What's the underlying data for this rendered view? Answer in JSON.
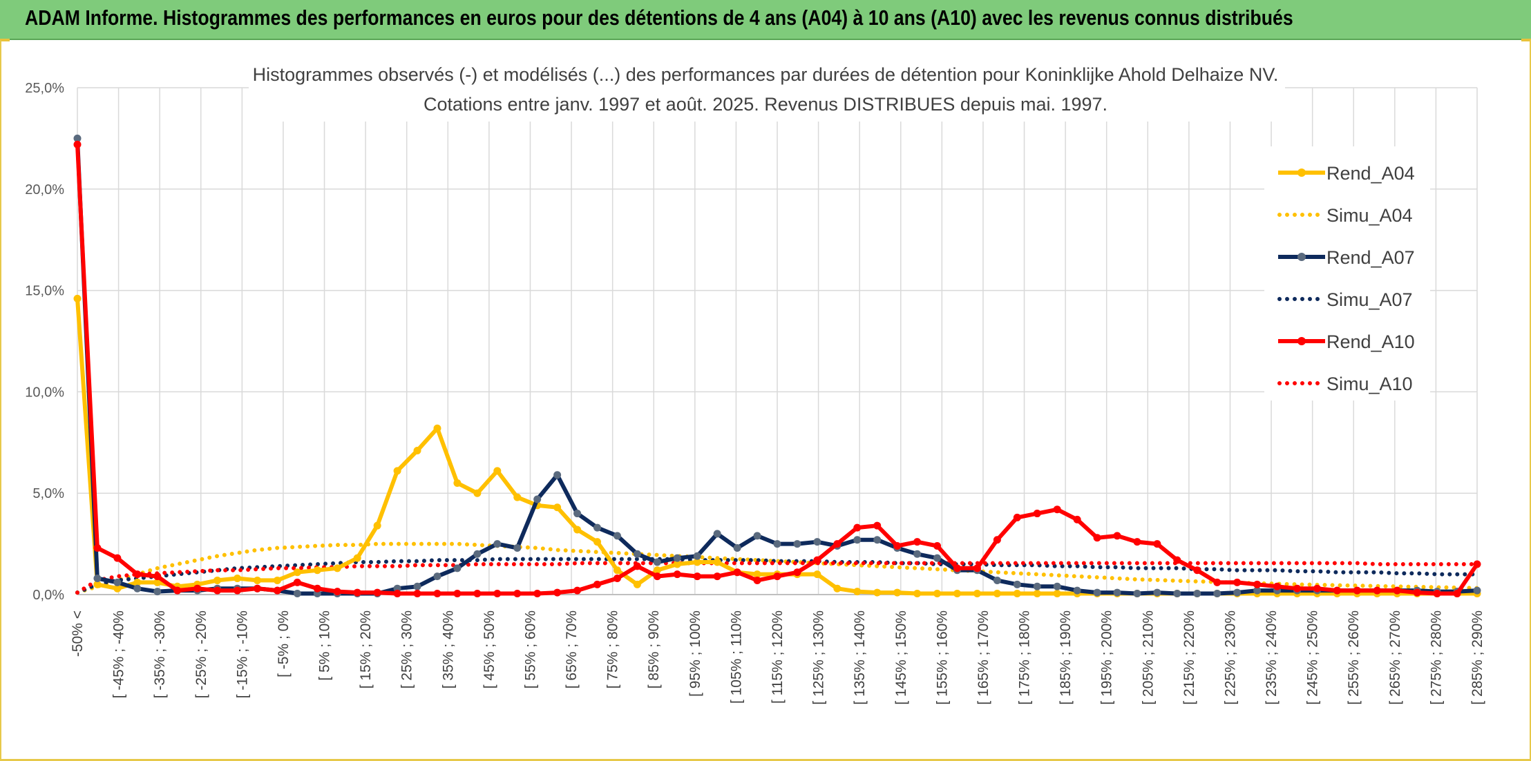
{
  "banner": {
    "title": "ADAM Informe. Histogrammes des performances en euros pour des détentions de 4 ans (A04) à 10 ans (A10) avec les revenus connus distribués"
  },
  "colors": {
    "banner_bg": "#7fcb7b",
    "a04": "#ffc000",
    "a07": "#0e2a5c",
    "a07_marker": "#5a6a7e",
    "a10": "#ff0000",
    "grid": "#d9d9d9"
  },
  "chart_data": {
    "type": "line",
    "title": "Histogrammes observés (-) et modélisés (...) des performances par durées de détention pour Koninklijke Ahold Delhaize NV.",
    "subtitle": "Cotations entre janv. 1997 et août. 2025. Revenus DISTRIBUES depuis mai. 1997.",
    "ylim": [
      0,
      25
    ],
    "yticks": [
      "0,0%",
      "5,0%",
      "10,0%",
      "15,0%",
      "20,0%",
      "25,0%"
    ],
    "ytick_values": [
      0,
      5,
      10,
      15,
      20,
      25
    ],
    "grid": true,
    "legend_position": "right",
    "x_labels": [
      "-50% <",
      "[ -45% ; -40%",
      "[ -35% ; -30%",
      "[ -25% ; -20%",
      "[ -15% ; -10%",
      "[ -5% ; 0%",
      "[ 5% ; 10%",
      "[ 15% ; 20%",
      "[ 25% ; 30%",
      "[ 35% ; 40%",
      "[ 45% ; 50%",
      "[ 55% ; 60%",
      "[ 65% ; 70%",
      "[ 75% ; 80%",
      "[ 85% ; 90%",
      "[ 95% ; 100%",
      "[ 105% ; 110%",
      "[ 115% ; 120%",
      "[ 125% ; 130%",
      "[ 135% ; 140%",
      "[ 145% ; 150%",
      "[ 155% ; 160%",
      "[ 165% ; 170%",
      "[ 175% ; 180%",
      "[ 185% ; 190%",
      "[ 195% ; 200%",
      "[ 205% ; 210%",
      "[ 215% ; 220%",
      "[ 225% ; 230%",
      "[ 235% ; 240%",
      "[ 245% ; 250%",
      "[ 255% ; 260%",
      "[ 265% ; 270%",
      "[ 275% ; 280%",
      "[ 285% ; 290%"
    ],
    "series": [
      {
        "name": "Rend_A04",
        "style": "solid",
        "color": "#ffc000",
        "values": [
          14.6,
          0.5,
          0.3,
          0.6,
          0.6,
          0.4,
          0.5,
          0.7,
          0.8,
          0.7,
          0.7,
          1.1,
          1.2,
          1.3,
          1.8,
          3.4,
          6.1,
          7.1,
          8.2,
          5.5,
          5.0,
          6.1,
          4.8,
          4.4,
          4.3,
          3.2,
          2.6,
          1.2,
          0.5,
          1.2,
          1.5,
          1.6,
          1.6,
          1.1,
          1.0,
          1.0,
          1.0,
          1.0,
          0.3,
          0.15,
          0.1,
          0.1,
          0.05,
          0.05,
          0.05,
          0.05,
          0.05,
          0.05,
          0.05,
          0.05,
          0.05,
          0.05,
          0.05,
          0.05,
          0.05,
          0.05,
          0.05,
          0.05,
          0.05,
          0.05,
          0.05,
          0.05,
          0.05,
          0.05,
          0.05,
          0.05,
          0.05,
          0.05,
          0.05,
          0.05,
          0.05
        ]
      },
      {
        "name": "Simu_A04",
        "style": "dotted",
        "color": "#ffc000",
        "values": [
          0.1,
          0.4,
          0.7,
          1.0,
          1.3,
          1.5,
          1.7,
          1.9,
          2.05,
          2.2,
          2.3,
          2.35,
          2.4,
          2.45,
          2.45,
          2.5,
          2.5,
          2.5,
          2.5,
          2.5,
          2.45,
          2.4,
          2.35,
          2.3,
          2.2,
          2.15,
          2.1,
          2.05,
          2.0,
          1.95,
          1.9,
          1.85,
          1.8,
          1.75,
          1.7,
          1.65,
          1.6,
          1.55,
          1.5,
          1.45,
          1.4,
          1.35,
          1.3,
          1.25,
          1.2,
          1.15,
          1.1,
          1.05,
          1.0,
          0.95,
          0.9,
          0.85,
          0.8,
          0.75,
          0.72,
          0.68,
          0.65,
          0.62,
          0.59,
          0.56,
          0.53,
          0.5,
          0.48,
          0.46,
          0.44,
          0.42,
          0.4,
          0.38,
          0.36,
          0.34,
          0.32
        ]
      },
      {
        "name": "Rend_A07",
        "style": "solid",
        "color": "#0e2a5c",
        "values": [
          22.5,
          0.8,
          0.6,
          0.3,
          0.15,
          0.2,
          0.2,
          0.3,
          0.3,
          0.3,
          0.2,
          0.05,
          0.05,
          0.05,
          0.05,
          0.05,
          0.3,
          0.4,
          0.9,
          1.3,
          2.0,
          2.5,
          2.3,
          4.7,
          5.9,
          4.0,
          3.3,
          2.9,
          2.0,
          1.6,
          1.8,
          1.9,
          3.0,
          2.3,
          2.9,
          2.5,
          2.5,
          2.6,
          2.4,
          2.7,
          2.7,
          2.3,
          2.0,
          1.8,
          1.2,
          1.2,
          0.7,
          0.5,
          0.4,
          0.4,
          0.2,
          0.1,
          0.1,
          0.05,
          0.1,
          0.05,
          0.05,
          0.05,
          0.1,
          0.2,
          0.2,
          0.2,
          0.2,
          0.2,
          0.2,
          0.2,
          0.2,
          0.2,
          0.15,
          0.15,
          0.2
        ]
      },
      {
        "name": "Simu_A07",
        "style": "dotted",
        "color": "#0e2a5c",
        "values": [
          0.1,
          0.5,
          0.7,
          0.8,
          0.9,
          1.0,
          1.1,
          1.2,
          1.3,
          1.35,
          1.4,
          1.45,
          1.5,
          1.55,
          1.6,
          1.6,
          1.65,
          1.65,
          1.7,
          1.7,
          1.7,
          1.75,
          1.75,
          1.75,
          1.75,
          1.75,
          1.75,
          1.75,
          1.75,
          1.75,
          1.75,
          1.7,
          1.7,
          1.7,
          1.7,
          1.65,
          1.65,
          1.65,
          1.6,
          1.6,
          1.6,
          1.55,
          1.55,
          1.5,
          1.5,
          1.5,
          1.45,
          1.45,
          1.45,
          1.4,
          1.4,
          1.35,
          1.35,
          1.3,
          1.3,
          1.3,
          1.25,
          1.25,
          1.2,
          1.2,
          1.2,
          1.15,
          1.15,
          1.1,
          1.1,
          1.1,
          1.05,
          1.05,
          1.0,
          1.0,
          1.0
        ]
      },
      {
        "name": "Rend_A10",
        "style": "solid",
        "color": "#ff0000",
        "values": [
          22.2,
          2.3,
          1.8,
          1.0,
          0.9,
          0.2,
          0.3,
          0.2,
          0.2,
          0.3,
          0.2,
          0.6,
          0.3,
          0.15,
          0.1,
          0.1,
          0.05,
          0.05,
          0.05,
          0.05,
          0.05,
          0.05,
          0.05,
          0.05,
          0.1,
          0.2,
          0.5,
          0.8,
          1.4,
          0.9,
          1.0,
          0.9,
          0.9,
          1.1,
          0.7,
          0.9,
          1.1,
          1.7,
          2.5,
          3.3,
          3.4,
          2.4,
          2.6,
          2.4,
          1.3,
          1.3,
          2.7,
          3.8,
          4.0,
          4.2,
          3.7,
          2.8,
          2.9,
          2.6,
          2.5,
          1.7,
          1.2,
          0.6,
          0.6,
          0.5,
          0.4,
          0.3,
          0.3,
          0.2,
          0.2,
          0.2,
          0.2,
          0.1,
          0.05,
          0.05,
          1.5
        ]
      },
      {
        "name": "Simu_A10",
        "style": "dotted",
        "color": "#ff0000",
        "values": [
          0.1,
          0.7,
          0.9,
          1.0,
          1.05,
          1.1,
          1.15,
          1.2,
          1.2,
          1.25,
          1.3,
          1.3,
          1.35,
          1.35,
          1.4,
          1.4,
          1.4,
          1.45,
          1.45,
          1.45,
          1.5,
          1.5,
          1.5,
          1.5,
          1.5,
          1.55,
          1.55,
          1.55,
          1.55,
          1.55,
          1.55,
          1.55,
          1.55,
          1.55,
          1.55,
          1.55,
          1.55,
          1.55,
          1.55,
          1.55,
          1.55,
          1.55,
          1.55,
          1.55,
          1.55,
          1.55,
          1.55,
          1.55,
          1.55,
          1.55,
          1.55,
          1.55,
          1.55,
          1.55,
          1.55,
          1.55,
          1.55,
          1.55,
          1.55,
          1.55,
          1.55,
          1.55,
          1.55,
          1.55,
          1.55,
          1.5,
          1.5,
          1.5,
          1.5,
          1.5,
          1.5
        ]
      }
    ]
  }
}
